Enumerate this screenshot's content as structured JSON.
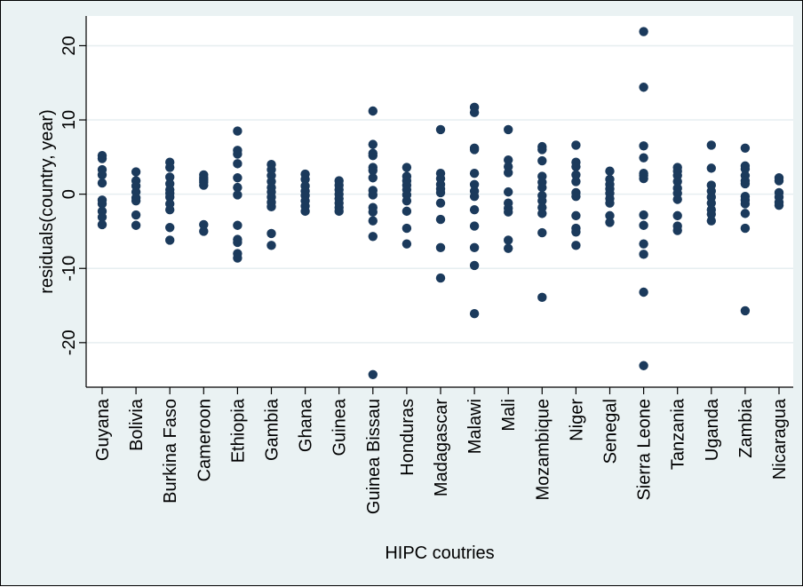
{
  "chart_data": {
    "type": "scatter",
    "xlabel": "HIPC coutries",
    "ylabel": "residuals(country, year)",
    "ylim": [
      -26,
      24
    ],
    "yticks": [
      -20,
      -10,
      0,
      10,
      20
    ],
    "grid": true,
    "colors": {
      "marker": "#1b3a5c",
      "plot_bg": "#ffffff",
      "outer_bg": "#eaf2f3",
      "grid": "#e6eef0"
    },
    "categories": [
      "Guyana",
      "Bolivia",
      "Burkina Faso",
      "Cameroon",
      "Ethiopia",
      "Gambia",
      "Ghana",
      "Guinea",
      "Guinea Bissau",
      "Honduras",
      "Madagascar",
      "Malawi",
      "Mali",
      "Mozambique",
      "Niger",
      "Senegal",
      "Sierra Leone",
      "Tanzania",
      "Uganda",
      "Zambia",
      "Nicaragua"
    ],
    "series": [
      {
        "values": [
          [
            5.2,
            4.8,
            3.3,
            2.6,
            1.5,
            -0.8,
            -1.3,
            -2.3,
            -3.1,
            -4.1
          ],
          [
            3.0,
            1.8,
            1.1,
            0.3,
            -0.5,
            -0.9,
            -2.8,
            -4.2
          ],
          [
            4.3,
            3.6,
            2.3,
            1.4,
            0.6,
            0.1,
            -0.4,
            -1.3,
            -2.1,
            -4.5,
            -6.2
          ],
          [
            2.6,
            2.2,
            1.9,
            1.6,
            1.2,
            -4.1,
            -5.0
          ],
          [
            8.5,
            5.9,
            5.4,
            4.1,
            2.2,
            0.9,
            -0.1,
            -4.2,
            -6.1,
            -6.5,
            -8.0,
            -8.6
          ],
          [
            4.0,
            3.3,
            2.5,
            1.7,
            0.9,
            0.3,
            -0.4,
            -1.1,
            -1.7,
            -5.3,
            -6.9
          ],
          [
            2.7,
            2.0,
            1.1,
            0.4,
            -0.2,
            -0.9,
            -1.6,
            -2.3
          ],
          [
            1.8,
            1.2,
            0.6,
            0.0,
            -0.6,
            -1.2,
            -1.8,
            -2.3
          ],
          [
            11.2,
            6.7,
            5.5,
            5.2,
            3.6,
            3.2,
            2.2,
            0.5,
            -0.1,
            -1.8,
            -2.4,
            -3.6,
            -5.7,
            -24.3
          ],
          [
            3.6,
            2.4,
            1.8,
            1.2,
            0.6,
            -0.1,
            -0.9,
            -2.3,
            -4.6,
            -6.7
          ],
          [
            8.7,
            2.8,
            2.1,
            1.3,
            0.7,
            0.2,
            -1.2,
            -3.4,
            -7.2,
            -11.3
          ],
          [
            11.7,
            11.0,
            6.2,
            6.0,
            2.8,
            1.3,
            0.4,
            -0.3,
            -2.1,
            -4.3,
            -7.2,
            -9.6,
            -16.1
          ],
          [
            8.7,
            4.6,
            3.7,
            2.9,
            0.3,
            -1.2,
            -1.9,
            -2.4,
            -6.2,
            -7.3
          ],
          [
            6.4,
            6.0,
            4.5,
            2.4,
            1.6,
            0.9,
            -0.2,
            -0.9,
            -1.8,
            -2.6,
            -5.2,
            -13.9
          ],
          [
            6.6,
            4.3,
            3.7,
            2.6,
            1.7,
            0.2,
            -0.3,
            -2.9,
            -4.6,
            -5.1,
            -6.9
          ],
          [
            3.1,
            2.0,
            1.3,
            0.7,
            0.1,
            -0.6,
            -1.2,
            -2.9,
            -3.8
          ],
          [
            21.9,
            14.4,
            6.5,
            4.9,
            2.8,
            2.5,
            2.1,
            -2.8,
            -4.2,
            -6.7,
            -8.1,
            -13.2,
            -23.1
          ],
          [
            3.6,
            3.1,
            2.5,
            1.7,
            0.8,
            0.1,
            -0.7,
            -2.9,
            -4.3,
            -4.9
          ],
          [
            6.6,
            3.5,
            1.2,
            0.4,
            -0.4,
            -1.2,
            -2.1,
            -2.7,
            -3.6
          ],
          [
            6.2,
            3.8,
            3.4,
            2.5,
            1.8,
            1.4,
            -0.3,
            -0.8,
            -1.3,
            -2.6,
            -4.6,
            -15.7
          ],
          [
            2.2,
            1.8,
            0.2,
            -0.4,
            -1.1,
            -1.5
          ]
        ]
      }
    ]
  }
}
